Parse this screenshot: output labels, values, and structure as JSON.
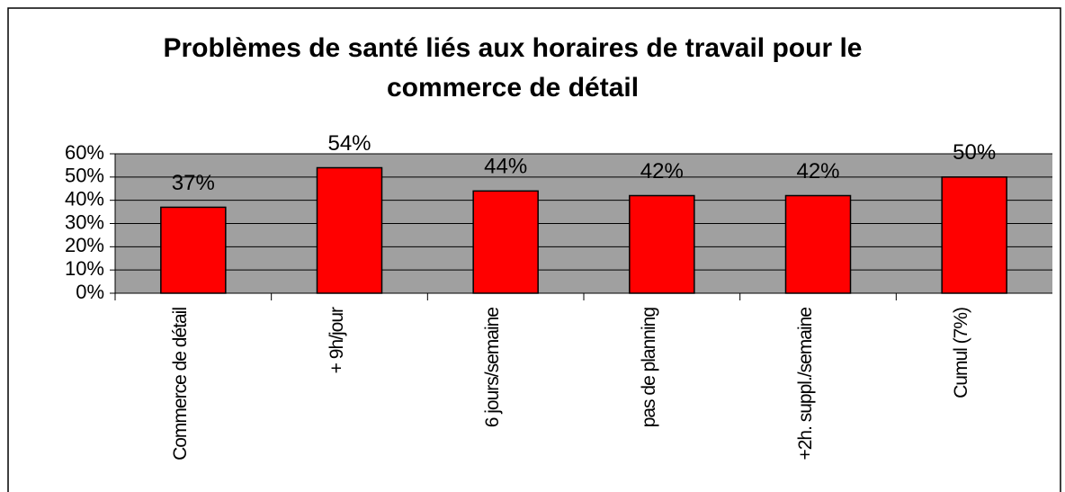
{
  "chart_data": {
    "type": "bar",
    "title": "Problèmes de santé liés aux horaires de travail pour le commerce de détail",
    "categories": [
      "Commerce de détail",
      "+ 9h/jour",
      "6 jours/semaine",
      "pas de planning",
      "+2h. suppl./semaine",
      "Cumul (7%)"
    ],
    "values": [
      37,
      54,
      44,
      42,
      42,
      50
    ],
    "value_labels": [
      "37%",
      "54%",
      "44%",
      "42%",
      "42%",
      "50%"
    ],
    "color": "#ff0000",
    "ylim": [
      0,
      60
    ],
    "yticks": [
      {
        "value": 0,
        "label": "0%"
      },
      {
        "value": 10,
        "label": "10%"
      },
      {
        "value": 20,
        "label": "20%"
      },
      {
        "value": 30,
        "label": "30%"
      },
      {
        "value": 40,
        "label": "40%"
      },
      {
        "value": 50,
        "label": "50%"
      },
      {
        "value": 60,
        "label": "60%"
      }
    ],
    "grid": true
  }
}
